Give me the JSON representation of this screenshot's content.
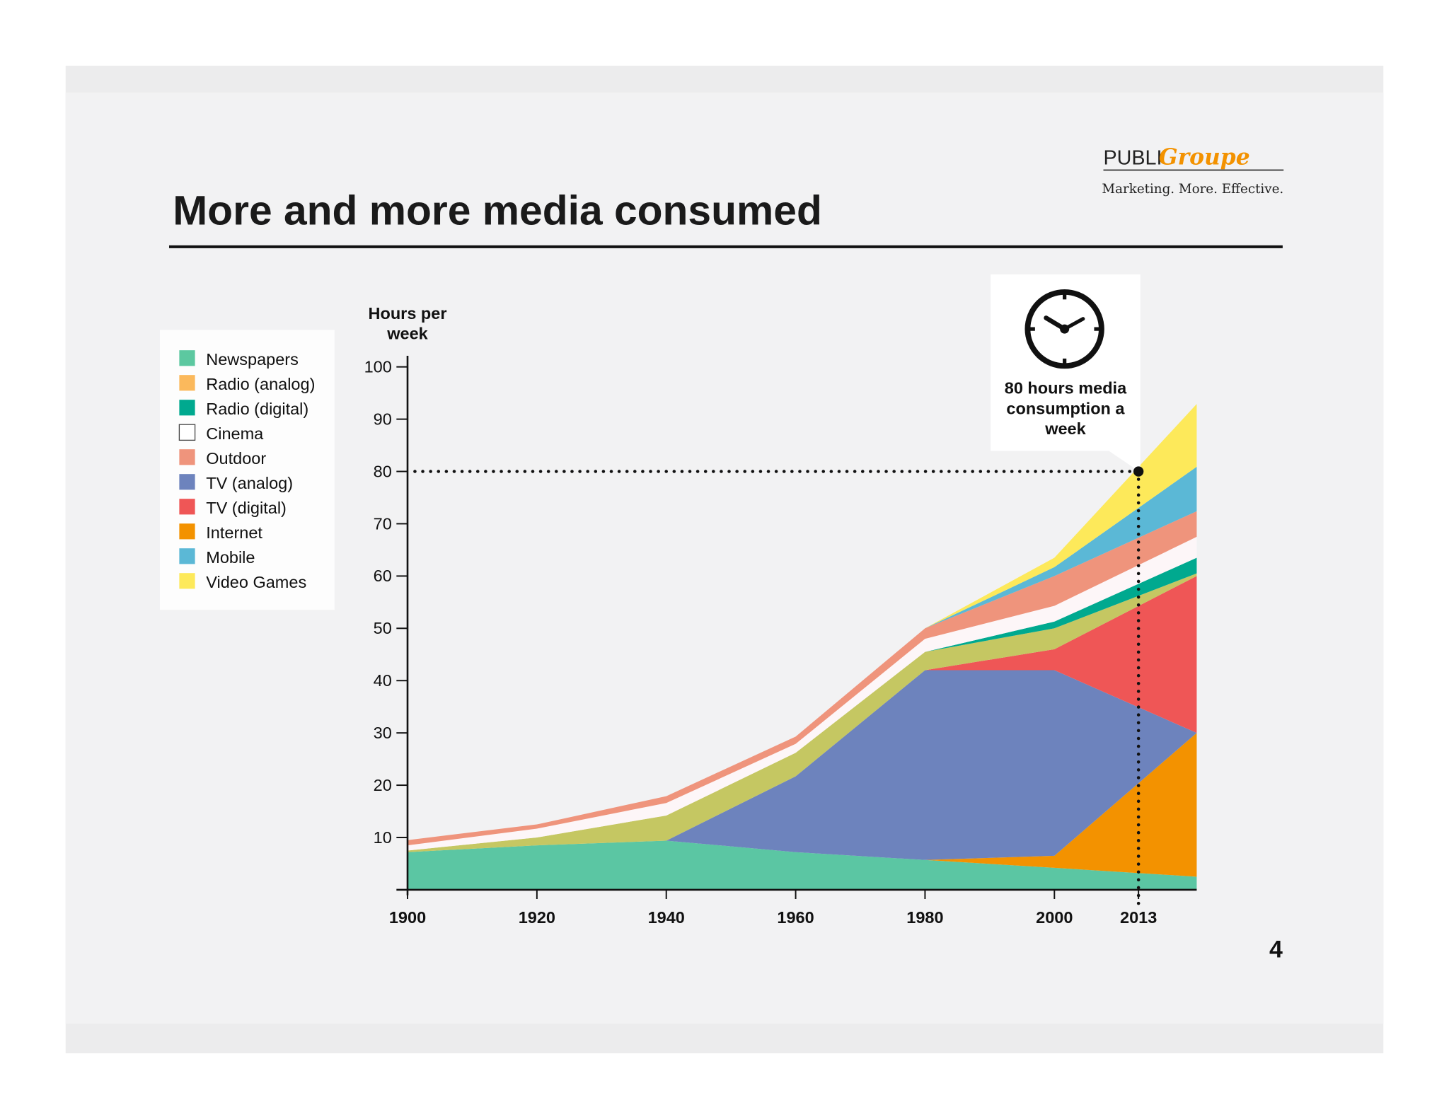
{
  "slide": {
    "title": "More and more media consumed",
    "page_number": "4",
    "logo": {
      "part1": "PUBLI",
      "part2": "Groupe",
      "tagline": "Marketing. More. Effective."
    }
  },
  "annotation": {
    "text_lines": [
      "80 hours media",
      "consumption a",
      "week"
    ],
    "icon": "clock-icon",
    "x": 2013,
    "y": 80
  },
  "chart_data": {
    "type": "area",
    "stacked": true,
    "title": "",
    "ylabel_lines": [
      "Hours per",
      "week"
    ],
    "xlabel": "",
    "ylim": [
      0,
      100
    ],
    "yticks": [
      10,
      20,
      30,
      40,
      50,
      60,
      70,
      80,
      90,
      100
    ],
    "xticks": [
      1900,
      1920,
      1940,
      1960,
      1980,
      2000,
      2013
    ],
    "x": [
      1900,
      1920,
      1940,
      1960,
      1980,
      2000,
      2022
    ],
    "grid": false,
    "legend_position": "left",
    "series": [
      {
        "name": "Newspapers",
        "legend_color": "#5cc8a0",
        "color": "#5bc6a3",
        "values": [
          7.2,
          8.5,
          9.4,
          7.2,
          5.7,
          4.2,
          2.5
        ]
      },
      {
        "name": "Internet",
        "legend_color": "#f39200",
        "color": "#f39200",
        "values": [
          0,
          0,
          0,
          0,
          0,
          2.3,
          27.5
        ]
      },
      {
        "name": "TV (analog)",
        "legend_color": "#6d83bd",
        "color": "#6d83bd",
        "values": [
          0,
          0,
          0,
          14.5,
          36.3,
          35.5,
          0
        ]
      },
      {
        "name": "TV (digital)",
        "legend_color": "#ef5656",
        "color": "#ef5656",
        "values": [
          0,
          0,
          0,
          0,
          0,
          4,
          30
        ]
      },
      {
        "name": "Radio (analog)",
        "legend_color": "#fbb95c",
        "color": "#c5c762",
        "values": [
          0.3,
          1.5,
          4.8,
          4.5,
          3.5,
          4,
          0.5
        ]
      },
      {
        "name": "Radio (digital)",
        "legend_color": "#00a98f",
        "color": "#00a98f",
        "values": [
          0,
          0,
          0,
          0,
          0,
          1.3,
          3
        ]
      },
      {
        "name": "Cinema",
        "legend_color": "#ffffff",
        "color": "#fdf6f8",
        "values": [
          1,
          1.7,
          2.4,
          1.7,
          2.5,
          3,
          4
        ]
      },
      {
        "name": "Outdoor",
        "legend_color": "#ef947c",
        "color": "#ef947c",
        "values": [
          1,
          0.8,
          1.3,
          1.4,
          2,
          5.7,
          4.9
        ]
      },
      {
        "name": "Mobile",
        "legend_color": "#5bb8d6",
        "color": "#5bb8d6",
        "values": [
          0,
          0,
          0,
          0,
          0,
          1.7,
          8.5
        ]
      },
      {
        "name": "Video Games",
        "legend_color": "#fde95a",
        "color": "#fde95a",
        "values": [
          0,
          0,
          0,
          0,
          0,
          1.8,
          12
        ]
      }
    ],
    "legend_order": [
      "Newspapers",
      "Radio (analog)",
      "Radio (digital)",
      "Cinema",
      "Outdoor",
      "TV (analog)",
      "TV (digital)",
      "Internet",
      "Mobile",
      "Video Games"
    ]
  }
}
